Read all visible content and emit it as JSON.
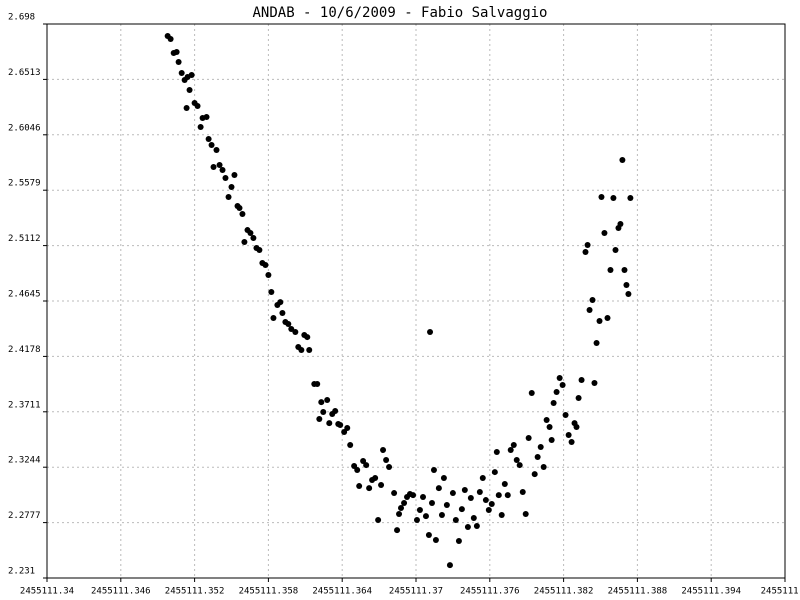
{
  "chart_data": {
    "type": "scatter",
    "title": "ANDAB - 10/6/2009 - Fabio Salvaggio",
    "xlim": [
      2455111.34,
      2455111.4
    ],
    "xticks": [
      2455111.34,
      2455111.346,
      2455111.352,
      2455111.358,
      2455111.364,
      2455111.37,
      2455111.376,
      2455111.382,
      2455111.388,
      2455111.394,
      2455111.4
    ],
    "ylim": [
      2.231,
      2.698
    ],
    "yticks": [
      2.231,
      2.2777,
      2.3244,
      2.3711,
      2.4178,
      2.4645,
      2.5112,
      2.5579,
      2.6046,
      2.6513,
      2.698
    ],
    "grid": true,
    "color": "#000000",
    "x": [
      2455111.34981,
      2455111.35005,
      2455111.3503,
      2455111.35054,
      2455111.3507,
      2455111.35095,
      2455111.35119,
      2455111.35143,
      2455111.35159,
      2455111.35176,
      2455111.35135,
      2455111.352,
      2455111.35224,
      2455111.35249,
      2455111.35265,
      2455111.35297,
      2455111.35314,
      2455111.35338,
      2455111.35354,
      2455111.35378,
      2455111.35403,
      2455111.35427,
      2455111.35451,
      2455111.35476,
      2455111.355,
      2455111.35524,
      2455111.35549,
      2455111.35565,
      2455111.35589,
      2455111.35605,
      2455111.3563,
      2455111.35654,
      2455111.35678,
      2455111.35703,
      2455111.35727,
      2455111.35751,
      2455111.35776,
      2455111.358,
      2455111.35824,
      2455111.35841,
      2455111.35873,
      2455111.35897,
      2455111.35914,
      2455111.35938,
      2455111.35962,
      2455111.35986,
      2455111.36019,
      2455111.36043,
      2455111.36068,
      2455111.36092,
      2455111.36116,
      2455111.36132,
      2455111.36173,
      2455111.36197,
      2455111.36214,
      2455111.3623,
      2455111.36246,
      2455111.36278,
      2455111.36295,
      2455111.36319,
      2455111.36343,
      2455111.36368,
      2455111.36384,
      2455111.36416,
      2455111.36441,
      2455111.36465,
      2455111.36497,
      2455111.36522,
      2455111.36538,
      2455111.3657,
      2455111.36595,
      2455111.36619,
      2455111.36643,
      2455111.36668,
      2455111.36692,
      2455111.36716,
      2455111.36732,
      2455111.36757,
      2455111.36781,
      2455111.36822,
      2455111.36846,
      2455111.36862,
      2455111.36878,
      2455111.36903,
      2455111.36927,
      2455111.36951,
      2455111.36976,
      2455111.37008,
      2455111.37032,
      2455111.37057,
      2455111.37081,
      2455111.37105,
      2455111.37114,
      2455111.3713,
      2455111.37146,
      2455111.37162,
      2455111.37186,
      2455111.37211,
      2455111.37227,
      2455111.37251,
      2455111.37276,
      2455111.373,
      2455111.37324,
      2455111.37349,
      2455111.37373,
      2455111.37397,
      2455111.37422,
      2455111.37446,
      2455111.3747,
      2455111.37495,
      2455111.37519,
      2455111.37543,
      2455111.37568,
      2455111.37592,
      2455111.37616,
      2455111.37641,
      2455111.37657,
      2455111.37673,
      2455111.37697,
      2455111.37722,
      2455111.37746,
      2455111.3777,
      2455111.37795,
      2455111.37819,
      2455111.37843,
      2455111.37868,
      2455111.37892,
      2455111.37916,
      2455111.37941,
      2455111.37965,
      2455111.37989,
      2455111.38014,
      2455111.38038,
      2455111.38062,
      2455111.38086,
      2455111.38103,
      2455111.38119,
      2455111.38143,
      2455111.38168,
      2455111.38192,
      2455111.38216,
      2455111.38241,
      2455111.38265,
      2455111.38289,
      2455111.38305,
      2455111.38322,
      2455111.38346,
      2455111.38378,
      2455111.38395,
      2455111.38411,
      2455111.38435,
      2455111.38451,
      2455111.38468,
      2455111.38492,
      2455111.38508,
      2455111.38532,
      2455111.38557,
      2455111.38581,
      2455111.38605,
      2455111.38622,
      2455111.38646,
      2455111.38662,
      2455111.38678,
      2455111.38695,
      2455111.38711,
      2455111.38727,
      2455111.38743
    ],
    "values": [
      2.6879,
      2.6854,
      2.6736,
      2.6744,
      2.666,
      2.6567,
      2.6508,
      2.6533,
      2.6424,
      2.655,
      2.6272,
      2.6314,
      2.6289,
      2.6112,
      2.6188,
      2.6196,
      2.6011,
      2.596,
      2.5775,
      2.5918,
      2.5791,
      2.5749,
      2.5682,
      2.5522,
      2.5606,
      2.5707,
      2.5446,
      2.5429,
      2.5378,
      2.5142,
      2.5243,
      2.5218,
      2.5176,
      2.5092,
      2.5075,
      2.4965,
      2.4948,
      2.4864,
      2.4721,
      2.4502,
      2.4611,
      2.4636,
      2.4544,
      2.4468,
      2.4451,
      2.4409,
      2.4384,
      2.4257,
      2.4232,
      2.4358,
      2.4341,
      2.4232,
      2.3945,
      2.3945,
      2.365,
      2.3793,
      2.3709,
      2.381,
      2.3616,
      2.3692,
      2.3718,
      2.3608,
      2.36,
      2.3541,
      2.3574,
      2.3431,
      2.3254,
      2.322,
      2.3085,
      2.3296,
      2.3262,
      2.3068,
      2.3136,
      2.3153,
      2.2799,
      2.3094,
      2.3389,
      2.3305,
      2.3246,
      2.3026,
      2.2714,
      2.2849,
      2.29,
      2.2942,
      2.2993,
      2.3018,
      2.3009,
      2.2799,
      2.2883,
      2.2993,
      2.2832,
      2.2672,
      2.4384,
      2.2942,
      2.322,
      2.263,
      2.3068,
      2.2841,
      2.3153,
      2.2925,
      2.2419,
      2.3026,
      2.2799,
      2.2622,
      2.2891,
      2.3052,
      2.274,
      2.2984,
      2.2816,
      2.2748,
      2.3035,
      2.3153,
      2.2967,
      2.2883,
      2.2934,
      2.3203,
      2.3372,
      2.3009,
      2.2841,
      2.3102,
      2.3009,
      2.3389,
      2.3431,
      2.3305,
      2.3262,
      2.3035,
      2.2849,
      2.349,
      2.3869,
      2.3186,
      2.333,
      2.3414,
      2.3246,
      2.3642,
      2.3583,
      2.3473,
      2.3785,
      2.3878,
      2.3996,
      2.3937,
      2.3684,
      2.3515,
      2.3456,
      2.3616,
      2.3583,
      2.3827,
      2.3979,
      2.5058,
      2.5117,
      2.4569,
      2.4653,
      2.3954,
      2.4291,
      2.4476,
      2.5522,
      2.5218,
      2.4502,
      2.4906,
      2.5513,
      2.5075,
      2.526,
      2.5294,
      2.5834,
      2.4906,
      2.478,
      2.4704,
      2.5513
    ]
  }
}
